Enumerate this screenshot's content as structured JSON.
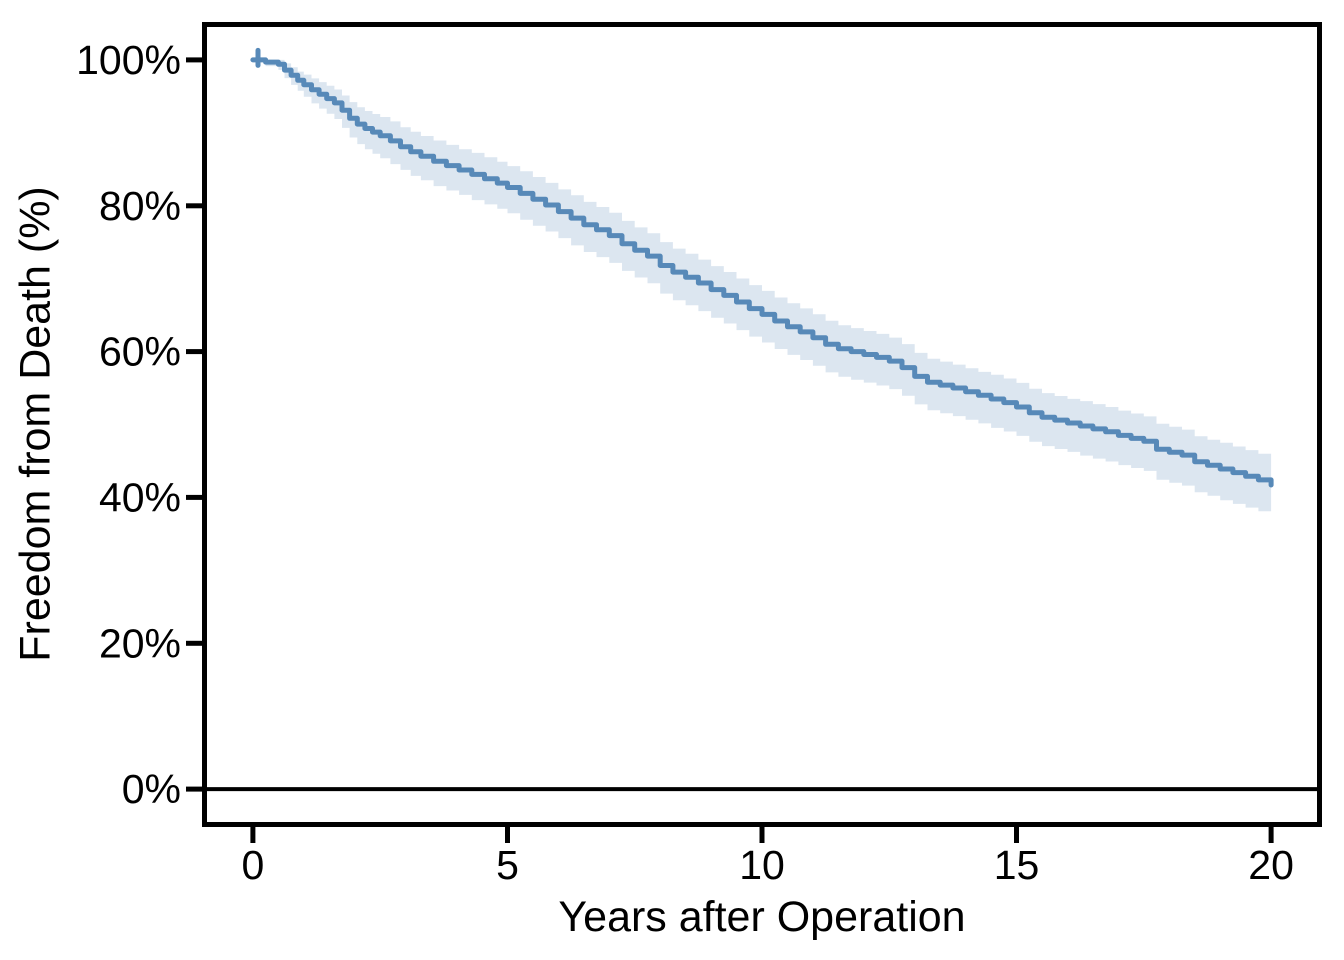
{
  "figure": {
    "background_color": "#ffffff",
    "axis_color": "#000000"
  },
  "chart_data": {
    "type": "line",
    "subtype": "kaplan-meier-step-with-confidence-band",
    "title": "",
    "xlabel": "Years after Operation",
    "ylabel": "Freedom from Death (%)",
    "xlim": [
      0,
      20
    ],
    "ylim": [
      0,
      100
    ],
    "grid": "off",
    "legend": "none",
    "x_ticks": [
      0,
      5,
      10,
      15,
      20
    ],
    "x_tick_labels": [
      "0",
      "5",
      "10",
      "15",
      "20"
    ],
    "y_ticks": [
      0,
      20,
      40,
      60,
      80,
      100
    ],
    "y_tick_labels": [
      "0%",
      "20%",
      "40%",
      "60%",
      "80%",
      "100%"
    ],
    "baseline_y": 0,
    "series": [
      {
        "name": "Freedom from Death",
        "line_color": "#5789b8",
        "band_color": "#dce6f0",
        "censor_marks_x": [
          0.1
        ],
        "points_format": [
          "years",
          "percent_survival",
          "ci_halfwidth_percent"
        ],
        "points": [
          [
            0.0,
            100.0,
            0.0
          ],
          [
            0.25,
            99.7,
            0.5
          ],
          [
            0.5,
            99.4,
            0.7
          ],
          [
            0.62,
            98.6,
            1.0
          ],
          [
            0.75,
            97.9,
            1.2
          ],
          [
            0.88,
            97.2,
            1.3
          ],
          [
            1.0,
            96.6,
            1.5
          ],
          [
            1.15,
            95.9,
            1.7
          ],
          [
            1.3,
            95.3,
            1.8
          ],
          [
            1.45,
            94.7,
            1.9
          ],
          [
            1.6,
            94.1,
            2.0
          ],
          [
            1.75,
            93.1,
            2.2
          ],
          [
            1.9,
            92.0,
            2.4
          ],
          [
            2.05,
            91.2,
            2.5
          ],
          [
            2.2,
            90.6,
            2.6
          ],
          [
            2.35,
            90.1,
            2.7
          ],
          [
            2.5,
            89.6,
            2.8
          ],
          [
            2.7,
            88.9,
            2.9
          ],
          [
            2.9,
            88.1,
            2.9
          ],
          [
            3.1,
            87.4,
            3.0
          ],
          [
            3.3,
            86.8,
            3.0
          ],
          [
            3.55,
            86.1,
            3.1
          ],
          [
            3.8,
            85.5,
            3.1
          ],
          [
            4.05,
            84.9,
            3.1
          ],
          [
            4.3,
            84.3,
            3.2
          ],
          [
            4.55,
            83.7,
            3.2
          ],
          [
            4.8,
            83.1,
            3.2
          ],
          [
            5.0,
            82.5,
            3.2
          ],
          [
            5.25,
            81.7,
            3.3
          ],
          [
            5.5,
            80.9,
            3.3
          ],
          [
            5.75,
            80.1,
            3.3
          ],
          [
            6.0,
            79.2,
            3.3
          ],
          [
            6.25,
            78.3,
            3.4
          ],
          [
            6.5,
            77.4,
            3.4
          ],
          [
            6.75,
            76.7,
            3.4
          ],
          [
            7.0,
            75.9,
            3.4
          ],
          [
            7.25,
            74.8,
            3.4
          ],
          [
            7.5,
            73.9,
            3.4
          ],
          [
            7.75,
            73.1,
            3.4
          ],
          [
            8.0,
            71.8,
            3.5
          ],
          [
            8.25,
            70.9,
            3.5
          ],
          [
            8.5,
            70.2,
            3.5
          ],
          [
            8.75,
            69.4,
            3.5
          ],
          [
            9.0,
            68.5,
            3.5
          ],
          [
            9.25,
            67.7,
            3.5
          ],
          [
            9.5,
            66.8,
            3.5
          ],
          [
            9.75,
            65.9,
            3.5
          ],
          [
            10.0,
            65.1,
            3.5
          ],
          [
            10.25,
            64.2,
            3.5
          ],
          [
            10.5,
            63.4,
            3.5
          ],
          [
            10.75,
            62.7,
            3.5
          ],
          [
            11.0,
            61.9,
            3.5
          ],
          [
            11.25,
            61.0,
            3.5
          ],
          [
            11.5,
            60.4,
            3.5
          ],
          [
            11.75,
            60.0,
            3.5
          ],
          [
            12.0,
            59.6,
            3.5
          ],
          [
            12.25,
            59.2,
            3.5
          ],
          [
            12.5,
            58.7,
            3.5
          ],
          [
            12.75,
            57.8,
            3.5
          ],
          [
            13.0,
            56.6,
            3.5
          ],
          [
            13.25,
            55.8,
            3.5
          ],
          [
            13.5,
            55.4,
            3.5
          ],
          [
            13.75,
            55.0,
            3.5
          ],
          [
            14.0,
            54.5,
            3.5
          ],
          [
            14.25,
            54.0,
            3.5
          ],
          [
            14.5,
            53.5,
            3.6
          ],
          [
            14.75,
            53.0,
            3.6
          ],
          [
            15.0,
            52.4,
            3.6
          ],
          [
            15.25,
            51.6,
            3.6
          ],
          [
            15.5,
            51.0,
            3.6
          ],
          [
            15.75,
            50.6,
            3.6
          ],
          [
            16.0,
            50.2,
            3.6
          ],
          [
            16.25,
            49.8,
            3.7
          ],
          [
            16.5,
            49.4,
            3.7
          ],
          [
            16.75,
            49.0,
            3.7
          ],
          [
            17.0,
            48.5,
            3.7
          ],
          [
            17.25,
            48.1,
            3.7
          ],
          [
            17.5,
            47.7,
            3.7
          ],
          [
            17.75,
            46.6,
            3.8
          ],
          [
            18.0,
            46.2,
            3.8
          ],
          [
            18.25,
            45.8,
            3.8
          ],
          [
            18.5,
            44.9,
            3.8
          ],
          [
            18.75,
            44.4,
            3.8
          ],
          [
            19.0,
            43.9,
            3.9
          ],
          [
            19.25,
            43.4,
            3.9
          ],
          [
            19.5,
            42.9,
            3.9
          ],
          [
            19.75,
            42.4,
            3.9
          ],
          [
            20.0,
            41.7,
            3.9
          ]
        ]
      }
    ]
  }
}
